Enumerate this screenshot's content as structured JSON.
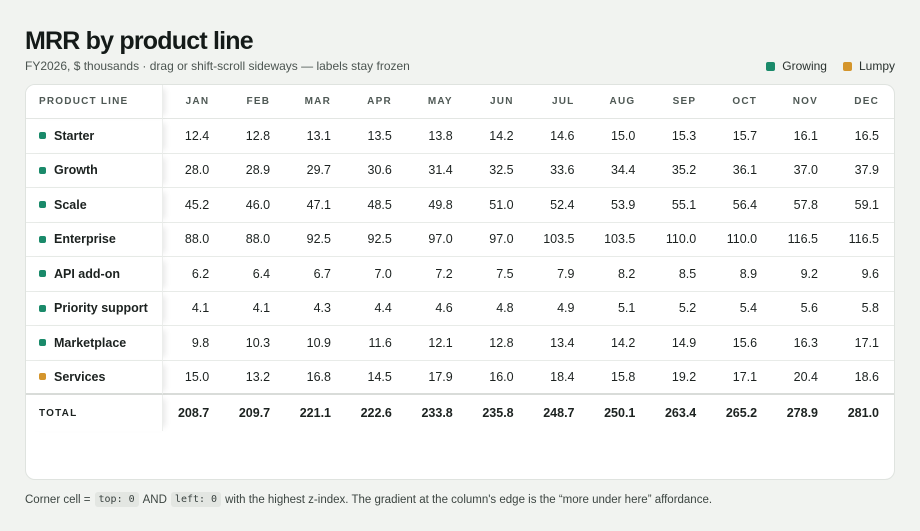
{
  "header": {
    "title": "MRR by product line",
    "subtitle": "FY2026, $ thousands · drag or shift-scroll sideways — labels stay frozen"
  },
  "legend": {
    "items": [
      {
        "label": "Growing",
        "color": "#1a8a6a"
      },
      {
        "label": "Lumpy",
        "color": "#d4952c"
      }
    ]
  },
  "table": {
    "corner_label": "PRODUCT LINE",
    "months": [
      "JAN",
      "FEB",
      "MAR",
      "APR",
      "MAY",
      "JUN",
      "JUL",
      "AUG",
      "SEP",
      "OCT",
      "NOV",
      "DEC"
    ],
    "rows": [
      {
        "label": "Starter",
        "status": "Growing",
        "values": [
          "12.4",
          "12.8",
          "13.1",
          "13.5",
          "13.8",
          "14.2",
          "14.6",
          "15.0",
          "15.3",
          "15.7",
          "16.1",
          "16.5"
        ]
      },
      {
        "label": "Growth",
        "status": "Growing",
        "values": [
          "28.0",
          "28.9",
          "29.7",
          "30.6",
          "31.4",
          "32.5",
          "33.6",
          "34.4",
          "35.2",
          "36.1",
          "37.0",
          "37.9"
        ]
      },
      {
        "label": "Scale",
        "status": "Growing",
        "values": [
          "45.2",
          "46.0",
          "47.1",
          "48.5",
          "49.8",
          "51.0",
          "52.4",
          "53.9",
          "55.1",
          "56.4",
          "57.8",
          "59.1"
        ]
      },
      {
        "label": "Enterprise",
        "status": "Growing",
        "values": [
          "88.0",
          "88.0",
          "92.5",
          "92.5",
          "97.0",
          "97.0",
          "103.5",
          "103.5",
          "110.0",
          "110.0",
          "116.5",
          "116.5"
        ]
      },
      {
        "label": "API add-on",
        "status": "Growing",
        "values": [
          "6.2",
          "6.4",
          "6.7",
          "7.0",
          "7.2",
          "7.5",
          "7.9",
          "8.2",
          "8.5",
          "8.9",
          "9.2",
          "9.6"
        ]
      },
      {
        "label": "Priority support",
        "status": "Growing",
        "values": [
          "4.1",
          "4.1",
          "4.3",
          "4.4",
          "4.6",
          "4.8",
          "4.9",
          "5.1",
          "5.2",
          "5.4",
          "5.6",
          "5.8"
        ]
      },
      {
        "label": "Marketplace",
        "status": "Growing",
        "values": [
          "9.8",
          "10.3",
          "10.9",
          "11.6",
          "12.1",
          "12.8",
          "13.4",
          "14.2",
          "14.9",
          "15.6",
          "16.3",
          "17.1"
        ]
      },
      {
        "label": "Services",
        "status": "Lumpy",
        "values": [
          "15.0",
          "13.2",
          "16.8",
          "14.5",
          "17.9",
          "16.0",
          "18.4",
          "15.8",
          "19.2",
          "17.1",
          "20.4",
          "18.6"
        ]
      }
    ],
    "total_label": "TOTAL",
    "totals": [
      "208.7",
      "209.7",
      "221.1",
      "222.6",
      "233.8",
      "235.8",
      "248.7",
      "250.1",
      "263.4",
      "265.2",
      "278.9",
      "281.0"
    ]
  },
  "note": {
    "prefix": "Corner cell =",
    "code1": "top: 0",
    "and": "AND",
    "code2": "left: 0",
    "suffix": "with the highest z-index. The gradient at the column's edge is the “more under here” affordance."
  }
}
